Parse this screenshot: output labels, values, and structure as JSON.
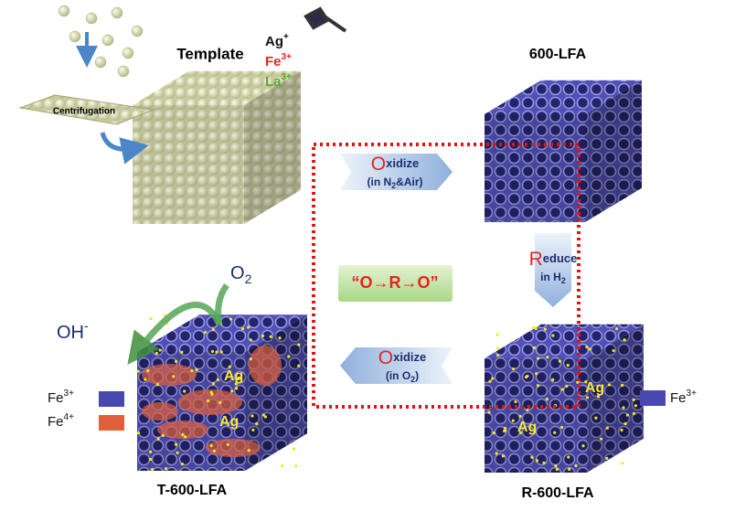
{
  "template": {
    "title": "Template",
    "process": "Centrifugation"
  },
  "precursors": [
    {
      "element": "Ag",
      "charge": "+",
      "color": "#111111"
    },
    {
      "element": "Fe",
      "charge": "3+",
      "color": "#e8231f"
    },
    {
      "element": "La",
      "charge": "3+",
      "color": "#5aa832"
    }
  ],
  "samples": {
    "calcined": "600-LFA",
    "reduced": "R-600-LFA",
    "reoxidized": "T-600-LFA"
  },
  "steps": {
    "oxidize_1": {
      "initial": "O",
      "rest": "xidize",
      "condition": [
        "(in N",
        "2",
        "&Air)"
      ]
    },
    "reduce": {
      "initial": "R",
      "rest": "educe",
      "condition": [
        "in H",
        "2"
      ]
    },
    "oxidize_2": {
      "initial": "O",
      "rest": "xidize",
      "condition": [
        "(in O",
        "2",
        ")"
      ]
    }
  },
  "cycle": "“O→R→O”",
  "reaction": {
    "reactant": [
      "O",
      "2"
    ],
    "product": [
      "OH",
      "-"
    ]
  },
  "legend_left": [
    {
      "element": "Fe",
      "charge": "3+",
      "color": "#4848b0"
    },
    {
      "element": "Fe",
      "charge": "4+",
      "color": "#e0603c"
    }
  ],
  "legend_right": [
    {
      "element": "Fe",
      "charge": "3+",
      "color": "#4848b0"
    }
  ],
  "silver_labels": {
    "reoxidized": [
      "Ag",
      "Ag"
    ],
    "reduced": [
      "Ag",
      "Ag"
    ]
  }
}
